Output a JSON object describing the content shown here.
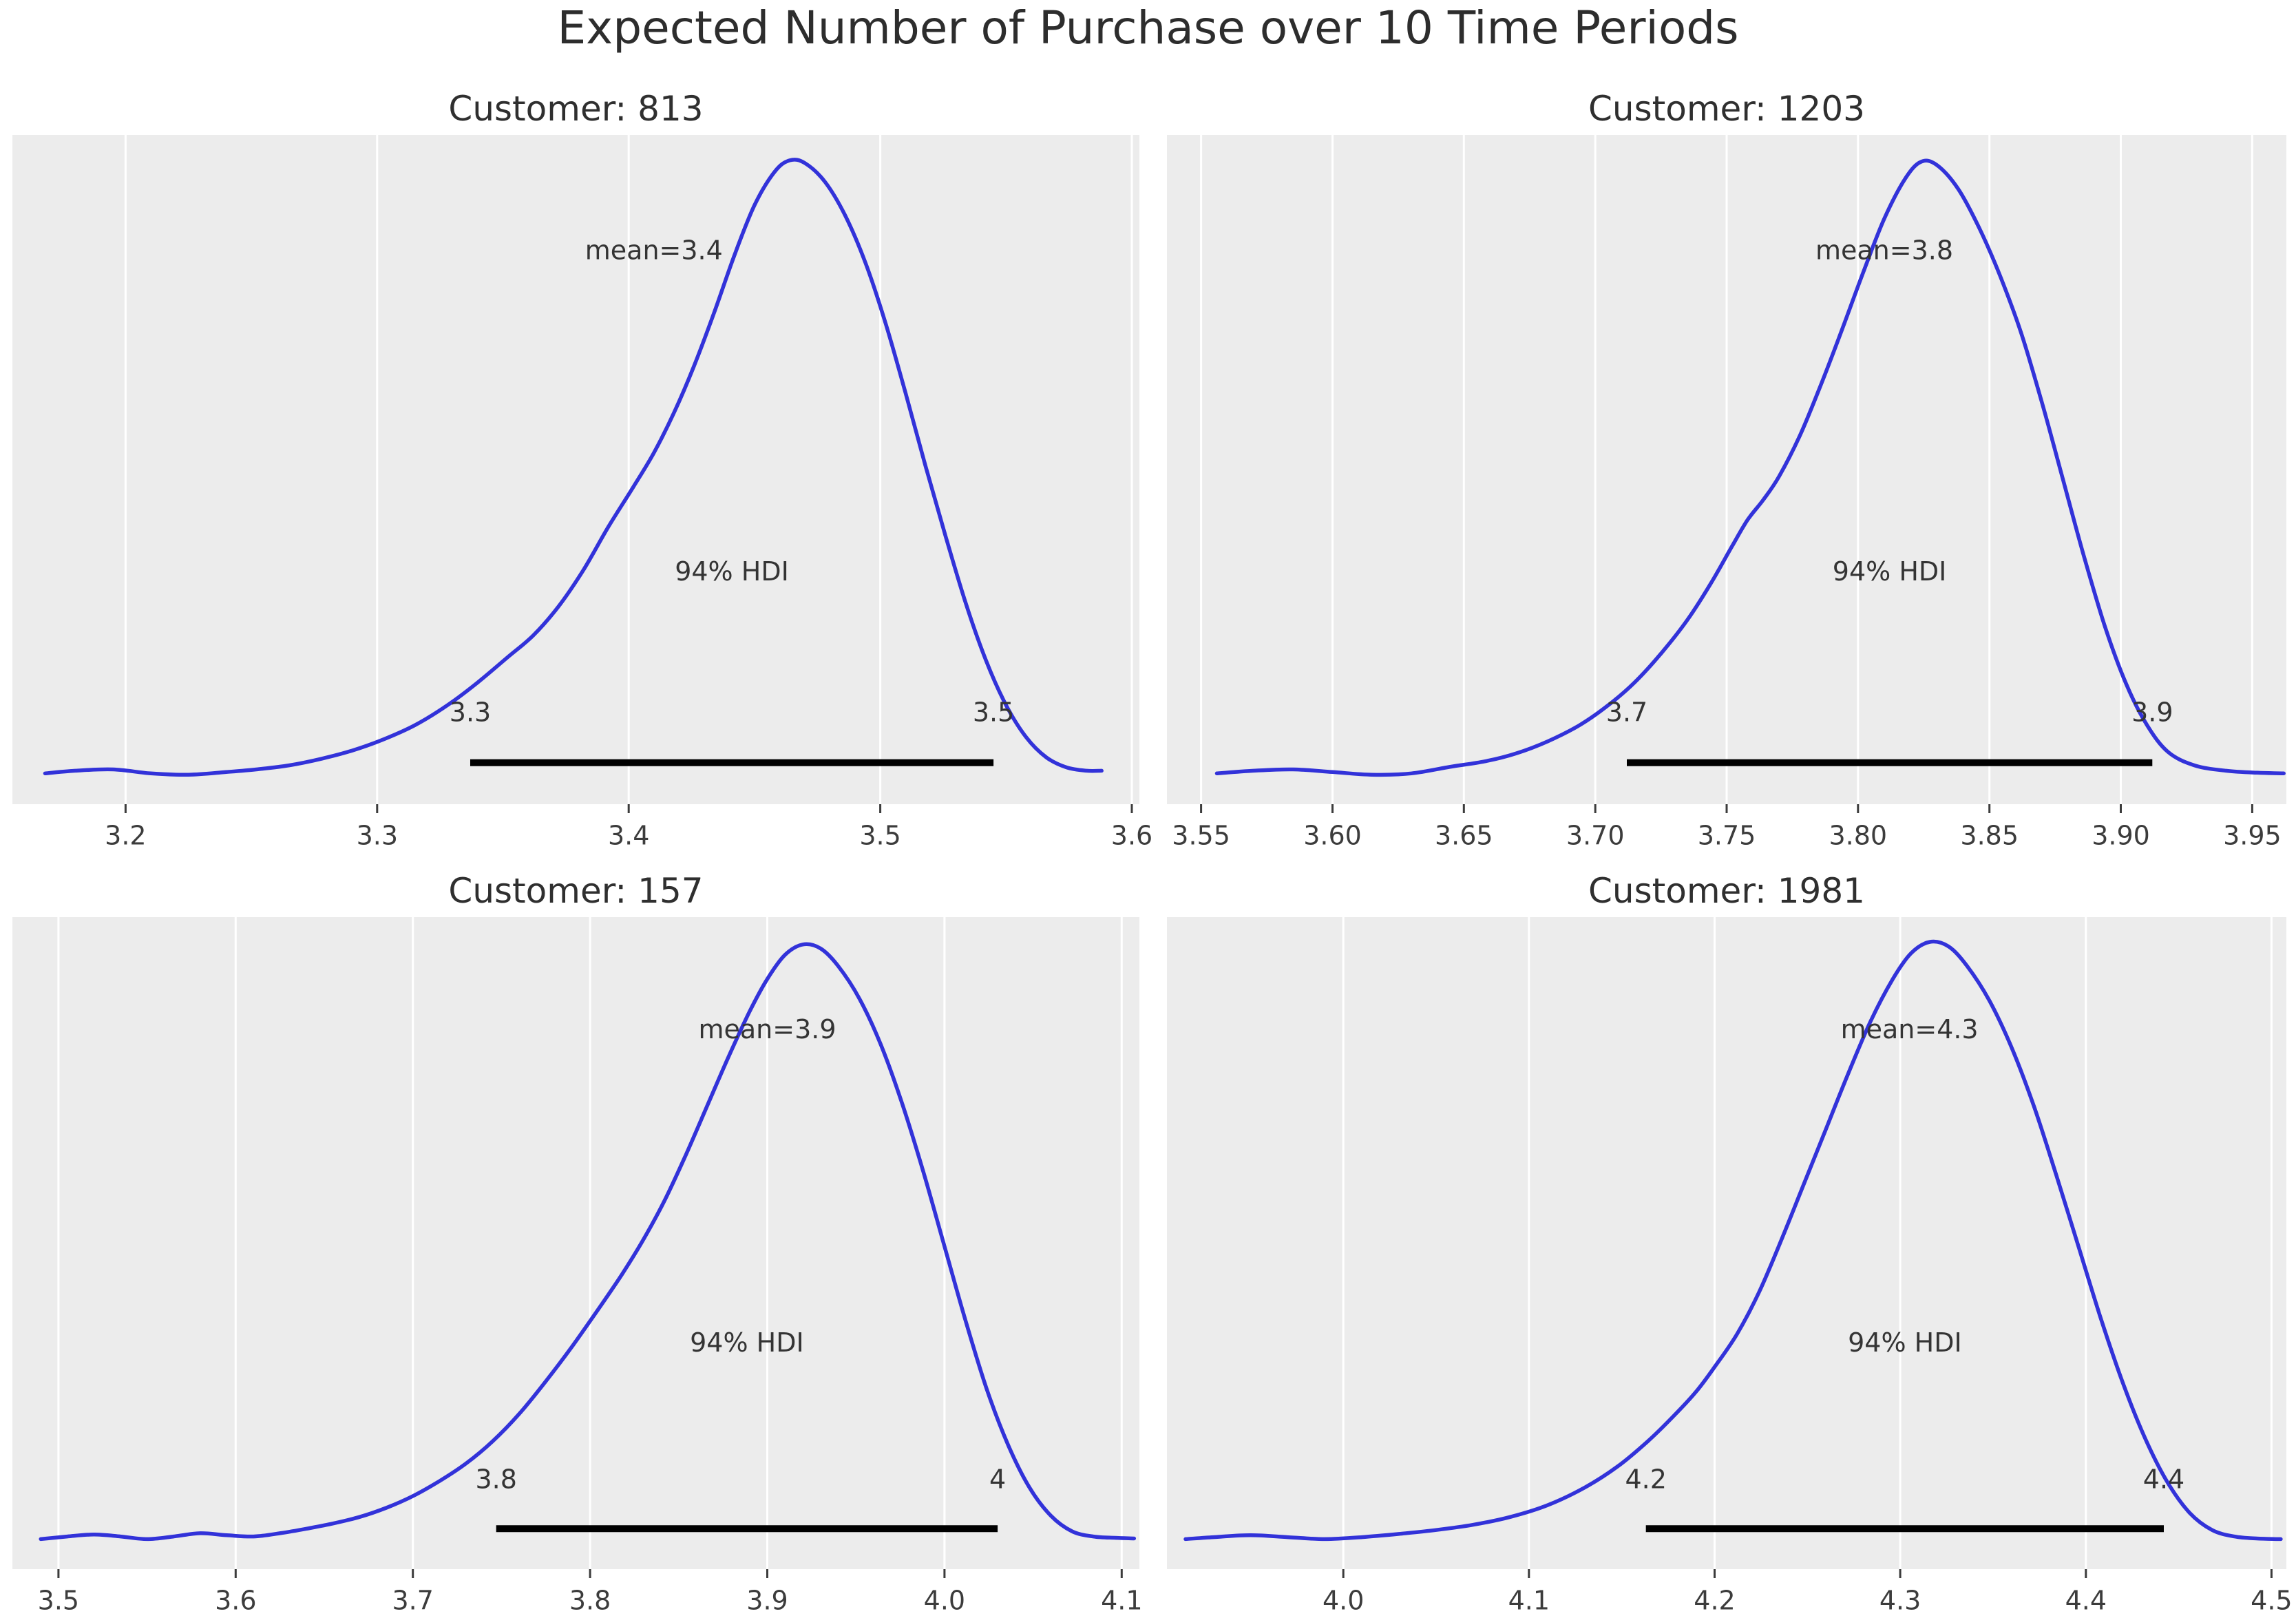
{
  "figure_title": "Expected Number of Purchase over 10 Time Periods",
  "colors": {
    "curve": "#3232d9",
    "axes_bg": "#ececec",
    "grid": "#ffffff",
    "hdi_bar": "#000000",
    "annotation_text": "#343434",
    "tick_text": "#3c3c3c",
    "title_text": "#2f2f2f"
  },
  "chart_data": {
    "type": "line",
    "kind": "posterior-kde-grid",
    "grid": [
      2,
      2
    ],
    "hdi_probability": "94%",
    "grid_on": true,
    "legend": "none",
    "plots": [
      {
        "customer_label": "Customer: 813",
        "customer_id": "813",
        "mean": 3.4,
        "mean_label": "mean=3.4",
        "mean_label_x": 3.41,
        "hdi_text": "94% HDI",
        "hdi_lower_label": "3.3",
        "hdi_upper_label": "3.5",
        "hdi_bar_start": 3.337,
        "hdi_bar_end": 3.545,
        "xlim": [
          3.155,
          3.603
        ],
        "xticks": [
          {
            "v": 3.2,
            "label": "3.2"
          },
          {
            "v": 3.3,
            "label": "3.3"
          },
          {
            "v": 3.4,
            "label": "3.4"
          },
          {
            "v": 3.5,
            "label": "3.5"
          },
          {
            "v": 3.6,
            "label": "3.6"
          }
        ],
        "curve_points": [
          [
            3.168,
            0.046
          ],
          [
            3.18,
            0.05
          ],
          [
            3.195,
            0.052
          ],
          [
            3.21,
            0.046
          ],
          [
            3.225,
            0.044
          ],
          [
            3.24,
            0.048
          ],
          [
            3.252,
            0.052
          ],
          [
            3.265,
            0.058
          ],
          [
            3.278,
            0.068
          ],
          [
            3.29,
            0.08
          ],
          [
            3.302,
            0.096
          ],
          [
            3.315,
            0.118
          ],
          [
            3.328,
            0.148
          ],
          [
            3.34,
            0.182
          ],
          [
            3.352,
            0.22
          ],
          [
            3.362,
            0.252
          ],
          [
            3.372,
            0.295
          ],
          [
            3.382,
            0.35
          ],
          [
            3.392,
            0.415
          ],
          [
            3.402,
            0.475
          ],
          [
            3.41,
            0.525
          ],
          [
            3.418,
            0.585
          ],
          [
            3.426,
            0.655
          ],
          [
            3.434,
            0.735
          ],
          [
            3.442,
            0.82
          ],
          [
            3.45,
            0.895
          ],
          [
            3.458,
            0.945
          ],
          [
            3.464,
            0.962
          ],
          [
            3.47,
            0.958
          ],
          [
            3.478,
            0.93
          ],
          [
            3.486,
            0.88
          ],
          [
            3.494,
            0.81
          ],
          [
            3.502,
            0.72
          ],
          [
            3.51,
            0.615
          ],
          [
            3.518,
            0.505
          ],
          [
            3.526,
            0.4
          ],
          [
            3.534,
            0.3
          ],
          [
            3.542,
            0.215
          ],
          [
            3.55,
            0.148
          ],
          [
            3.558,
            0.1
          ],
          [
            3.566,
            0.07
          ],
          [
            3.574,
            0.055
          ],
          [
            3.582,
            0.05
          ],
          [
            3.588,
            0.05
          ]
        ]
      },
      {
        "customer_label": "Customer: 1203",
        "customer_id": "1203",
        "mean": 3.8,
        "mean_label": "mean=3.8",
        "mean_label_x": 3.81,
        "hdi_text": "94% HDI",
        "hdi_lower_label": "3.7",
        "hdi_upper_label": "3.9",
        "hdi_bar_start": 3.712,
        "hdi_bar_end": 3.912,
        "xlim": [
          3.537,
          3.963
        ],
        "xticks": [
          {
            "v": 3.55,
            "label": "3.55"
          },
          {
            "v": 3.6,
            "label": "3.60"
          },
          {
            "v": 3.65,
            "label": "3.65"
          },
          {
            "v": 3.7,
            "label": "3.70"
          },
          {
            "v": 3.75,
            "label": "3.75"
          },
          {
            "v": 3.8,
            "label": "3.80"
          },
          {
            "v": 3.85,
            "label": "3.85"
          },
          {
            "v": 3.9,
            "label": "3.90"
          },
          {
            "v": 3.95,
            "label": "3.95"
          }
        ],
        "curve_points": [
          [
            3.556,
            0.046
          ],
          [
            3.57,
            0.05
          ],
          [
            3.585,
            0.052
          ],
          [
            3.6,
            0.048
          ],
          [
            3.615,
            0.044
          ],
          [
            3.63,
            0.046
          ],
          [
            3.645,
            0.056
          ],
          [
            3.658,
            0.064
          ],
          [
            3.67,
            0.076
          ],
          [
            3.682,
            0.094
          ],
          [
            3.694,
            0.118
          ],
          [
            3.705,
            0.148
          ],
          [
            3.715,
            0.182
          ],
          [
            3.725,
            0.225
          ],
          [
            3.735,
            0.275
          ],
          [
            3.744,
            0.33
          ],
          [
            3.752,
            0.385
          ],
          [
            3.758,
            0.425
          ],
          [
            3.764,
            0.455
          ],
          [
            3.77,
            0.49
          ],
          [
            3.778,
            0.552
          ],
          [
            3.786,
            0.628
          ],
          [
            3.794,
            0.71
          ],
          [
            3.802,
            0.795
          ],
          [
            3.81,
            0.875
          ],
          [
            3.818,
            0.935
          ],
          [
            3.824,
            0.96
          ],
          [
            3.83,
            0.955
          ],
          [
            3.838,
            0.92
          ],
          [
            3.846,
            0.862
          ],
          [
            3.854,
            0.79
          ],
          [
            3.862,
            0.705
          ],
          [
            3.87,
            0.6
          ],
          [
            3.878,
            0.485
          ],
          [
            3.886,
            0.37
          ],
          [
            3.894,
            0.265
          ],
          [
            3.902,
            0.18
          ],
          [
            3.91,
            0.118
          ],
          [
            3.918,
            0.078
          ],
          [
            3.928,
            0.058
          ],
          [
            3.94,
            0.05
          ],
          [
            3.952,
            0.047
          ],
          [
            3.962,
            0.046
          ]
        ]
      },
      {
        "customer_label": "Customer: 157",
        "customer_id": "157",
        "mean": 3.9,
        "mean_label": "mean=3.9",
        "mean_label_x": 3.9,
        "hdi_text": "94% HDI",
        "hdi_lower_label": "3.8",
        "hdi_upper_label": "4",
        "hdi_bar_start": 3.747,
        "hdi_bar_end": 4.03,
        "xlim": [
          3.474,
          4.11
        ],
        "xticks": [
          {
            "v": 3.5,
            "label": "3.5"
          },
          {
            "v": 3.6,
            "label": "3.6"
          },
          {
            "v": 3.7,
            "label": "3.7"
          },
          {
            "v": 3.8,
            "label": "3.8"
          },
          {
            "v": 3.9,
            "label": "3.9"
          },
          {
            "v": 4.0,
            "label": "4.0"
          },
          {
            "v": 4.1,
            "label": "4.1"
          }
        ],
        "curve_points": [
          [
            3.49,
            0.046
          ],
          [
            3.505,
            0.05
          ],
          [
            3.52,
            0.053
          ],
          [
            3.535,
            0.05
          ],
          [
            3.55,
            0.046
          ],
          [
            3.565,
            0.05
          ],
          [
            3.58,
            0.055
          ],
          [
            3.595,
            0.052
          ],
          [
            3.61,
            0.05
          ],
          [
            3.625,
            0.055
          ],
          [
            3.64,
            0.062
          ],
          [
            3.655,
            0.07
          ],
          [
            3.67,
            0.08
          ],
          [
            3.685,
            0.094
          ],
          [
            3.7,
            0.112
          ],
          [
            3.715,
            0.135
          ],
          [
            3.73,
            0.162
          ],
          [
            3.745,
            0.196
          ],
          [
            3.76,
            0.238
          ],
          [
            3.775,
            0.288
          ],
          [
            3.79,
            0.342
          ],
          [
            3.805,
            0.4
          ],
          [
            3.818,
            0.452
          ],
          [
            3.83,
            0.505
          ],
          [
            3.842,
            0.565
          ],
          [
            3.854,
            0.635
          ],
          [
            3.866,
            0.71
          ],
          [
            3.878,
            0.785
          ],
          [
            3.89,
            0.855
          ],
          [
            3.9,
            0.905
          ],
          [
            3.91,
            0.942
          ],
          [
            3.92,
            0.958
          ],
          [
            3.93,
            0.952
          ],
          [
            3.94,
            0.925
          ],
          [
            3.952,
            0.875
          ],
          [
            3.964,
            0.805
          ],
          [
            3.976,
            0.715
          ],
          [
            3.988,
            0.61
          ],
          [
            4.0,
            0.495
          ],
          [
            4.012,
            0.38
          ],
          [
            4.024,
            0.275
          ],
          [
            4.036,
            0.19
          ],
          [
            4.048,
            0.125
          ],
          [
            4.06,
            0.082
          ],
          [
            4.072,
            0.058
          ],
          [
            4.084,
            0.05
          ],
          [
            4.096,
            0.048
          ],
          [
            4.107,
            0.047
          ]
        ]
      },
      {
        "customer_label": "Customer: 1981",
        "customer_id": "1981",
        "mean": 4.3,
        "mean_label": "mean=4.3",
        "mean_label_x": 4.305,
        "hdi_text": "94% HDI",
        "hdi_lower_label": "4.2",
        "hdi_upper_label": "4.4",
        "hdi_bar_start": 4.163,
        "hdi_bar_end": 4.442,
        "xlim": [
          3.905,
          4.508
        ],
        "xticks": [
          {
            "v": 4.0,
            "label": "4.0"
          },
          {
            "v": 4.1,
            "label": "4.1"
          },
          {
            "v": 4.2,
            "label": "4.2"
          },
          {
            "v": 4.3,
            "label": "4.3"
          },
          {
            "v": 4.4,
            "label": "4.4"
          },
          {
            "v": 4.5,
            "label": "4.5"
          }
        ],
        "curve_points": [
          [
            3.915,
            0.046
          ],
          [
            3.93,
            0.049
          ],
          [
            3.95,
            0.052
          ],
          [
            3.97,
            0.049
          ],
          [
            3.99,
            0.046
          ],
          [
            4.01,
            0.049
          ],
          [
            4.03,
            0.054
          ],
          [
            4.05,
            0.06
          ],
          [
            4.07,
            0.068
          ],
          [
            4.09,
            0.08
          ],
          [
            4.11,
            0.098
          ],
          [
            4.13,
            0.125
          ],
          [
            4.148,
            0.158
          ],
          [
            4.164,
            0.196
          ],
          [
            4.178,
            0.235
          ],
          [
            4.19,
            0.272
          ],
          [
            4.2,
            0.31
          ],
          [
            4.212,
            0.36
          ],
          [
            4.224,
            0.425
          ],
          [
            4.236,
            0.505
          ],
          [
            4.248,
            0.59
          ],
          [
            4.26,
            0.675
          ],
          [
            4.272,
            0.76
          ],
          [
            4.284,
            0.84
          ],
          [
            4.296,
            0.905
          ],
          [
            4.306,
            0.945
          ],
          [
            4.316,
            0.962
          ],
          [
            4.326,
            0.955
          ],
          [
            4.336,
            0.925
          ],
          [
            4.348,
            0.872
          ],
          [
            4.36,
            0.8
          ],
          [
            4.372,
            0.71
          ],
          [
            4.384,
            0.605
          ],
          [
            4.396,
            0.495
          ],
          [
            4.408,
            0.385
          ],
          [
            4.42,
            0.285
          ],
          [
            4.432,
            0.2
          ],
          [
            4.444,
            0.133
          ],
          [
            4.456,
            0.086
          ],
          [
            4.468,
            0.06
          ],
          [
            4.48,
            0.05
          ],
          [
            4.492,
            0.047
          ],
          [
            4.505,
            0.046
          ]
        ]
      }
    ],
    "layout_note": "2x2 grid of KDE posterior density panels, gray axes background, white vertical gridlines, no y-axis"
  }
}
